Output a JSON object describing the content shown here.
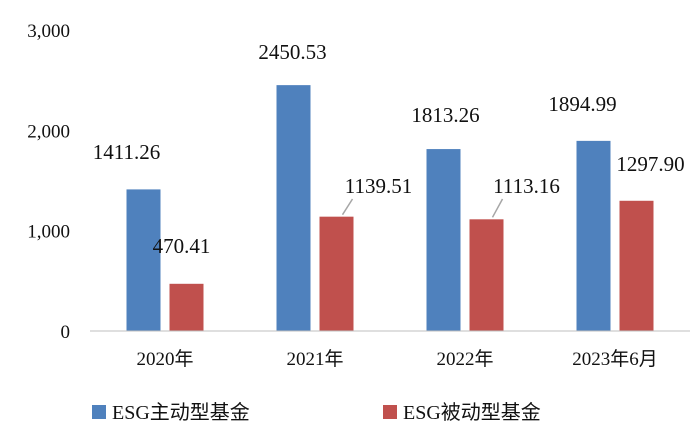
{
  "chart_data": {
    "type": "bar",
    "categories": [
      "2020年",
      "2021年",
      "2022年",
      "2023年6月"
    ],
    "series": [
      {
        "name": "ESG主动型基金",
        "values": [
          1411.26,
          2450.53,
          1813.26,
          1894.99
        ],
        "labels": [
          "1411.26",
          "2450.53",
          "1813.26",
          "1894.99"
        ],
        "color": "#4f81bd"
      },
      {
        "name": "ESG被动型基金",
        "values": [
          470.41,
          1139.51,
          1113.16,
          1297.9
        ],
        "labels": [
          "470.41",
          "1139.51",
          "1113.16",
          "1297.90"
        ],
        "color": "#c0504d"
      }
    ],
    "yticks": [
      "0",
      "1,000",
      "2,000",
      "3,000"
    ],
    "ylim": [
      0,
      3000
    ],
    "grid": false,
    "legend_position": "bottom-left"
  }
}
